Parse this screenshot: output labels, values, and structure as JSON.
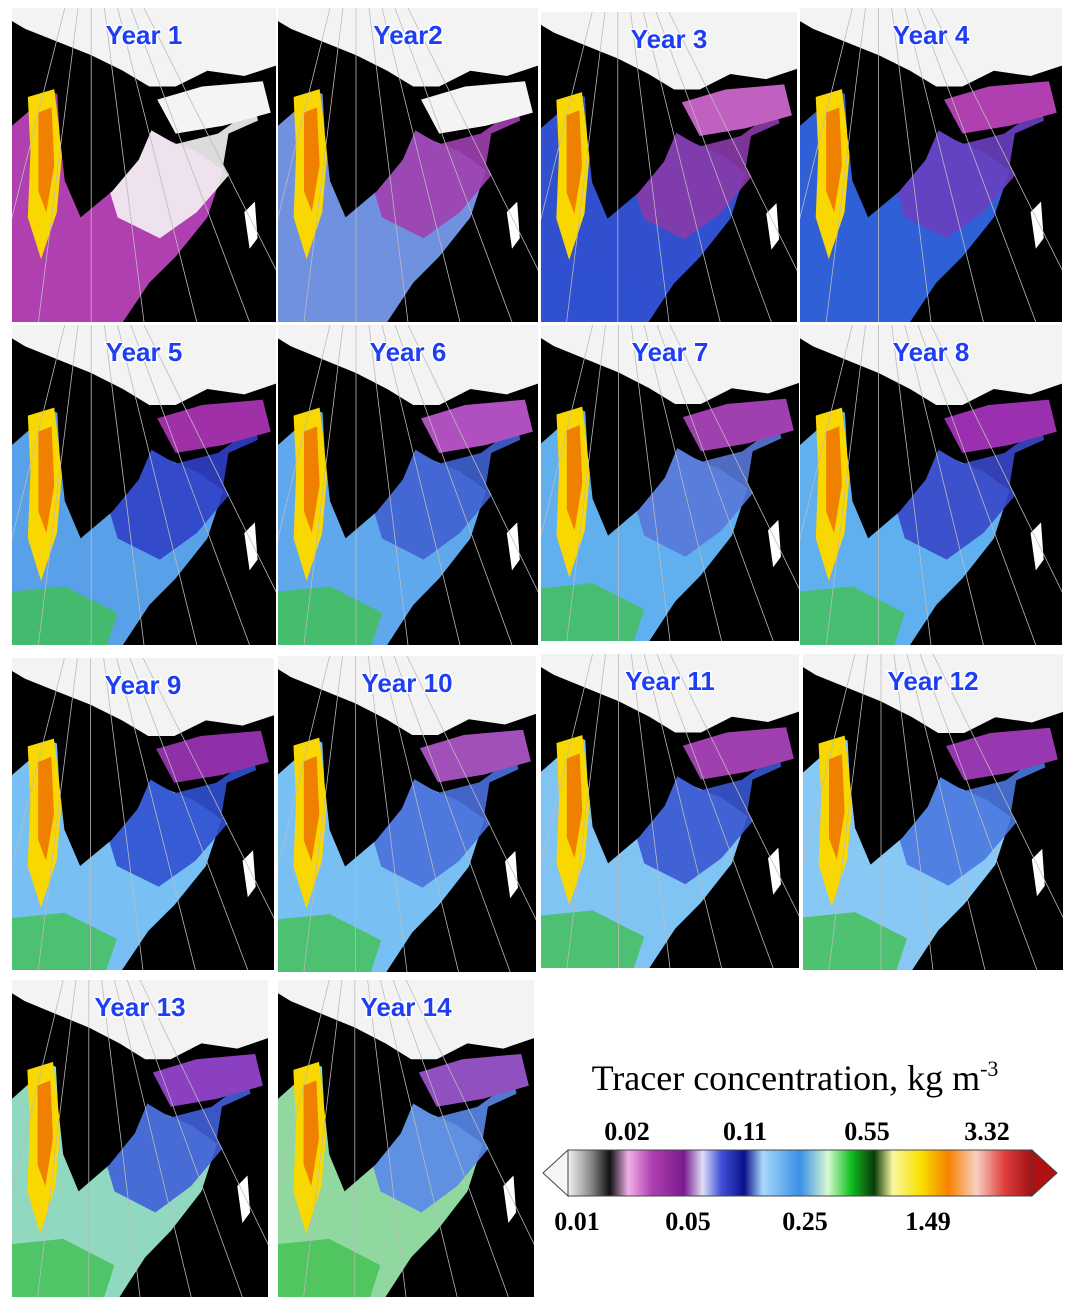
{
  "panels": [
    {
      "label": "Year 1"
    },
    {
      "label": "Year2"
    },
    {
      "label": "Year 3"
    },
    {
      "label": "Year 4"
    },
    {
      "label": "Year 5"
    },
    {
      "label": "Year 6"
    },
    {
      "label": "Year 7"
    },
    {
      "label": "Year 8"
    },
    {
      "label": "Year 9"
    },
    {
      "label": "Year 10"
    },
    {
      "label": "Year 11"
    },
    {
      "label": "Year 12"
    },
    {
      "label": "Year 13"
    },
    {
      "label": "Year 14"
    }
  ],
  "colorbar": {
    "title": "Tracer concentration, kg m",
    "title_superscript": "-3",
    "top_labels": [
      "0.02",
      "0.11",
      "0.55",
      "3.32"
    ],
    "bottom_labels": [
      "0.01",
      "0.05",
      "0.25",
      "1.49"
    ]
  }
}
